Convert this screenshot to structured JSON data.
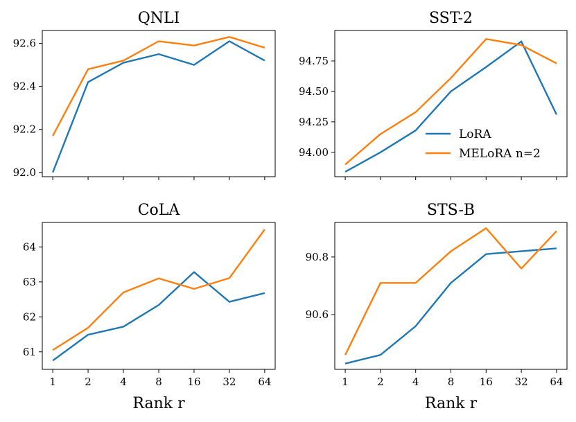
{
  "chart_data": [
    {
      "type": "line",
      "title": "QNLI",
      "categories": [
        "1",
        "2",
        "4",
        "8",
        "16",
        "32",
        "64"
      ],
      "xlabel": "",
      "ylim": [
        91.98,
        92.66
      ],
      "yticks": [
        "92.0",
        "92.2",
        "92.4",
        "92.6"
      ],
      "series": [
        {
          "name": "LoRA",
          "color": "#1f77b4",
          "values": [
            92.0,
            92.42,
            92.51,
            92.55,
            92.5,
            92.61,
            92.52
          ]
        },
        {
          "name": "MELoRA n=2",
          "color": "#ff7f0e",
          "values": [
            92.17,
            92.48,
            92.52,
            92.61,
            92.59,
            92.63,
            92.58
          ]
        }
      ],
      "legend": false
    },
    {
      "type": "line",
      "title": "SST-2",
      "categories": [
        "1",
        "2",
        "4",
        "8",
        "16",
        "32",
        "64"
      ],
      "xlabel": "",
      "ylim": [
        93.8,
        95.0
      ],
      "yticks": [
        "94.00",
        "94.25",
        "94.50",
        "94.75"
      ],
      "series": [
        {
          "name": "LoRA",
          "color": "#1f77b4",
          "values": [
            93.84,
            94.0,
            94.18,
            94.5,
            94.7,
            94.91,
            94.31
          ]
        },
        {
          "name": "MELoRA n=2",
          "color": "#ff7f0e",
          "values": [
            93.9,
            94.15,
            94.33,
            94.61,
            94.93,
            94.88,
            94.73
          ]
        }
      ],
      "legend": true,
      "legend_loc": "lower-right"
    },
    {
      "type": "line",
      "title": "CoLA",
      "categories": [
        "1",
        "2",
        "4",
        "8",
        "16",
        "32",
        "64"
      ],
      "xlabel": "Rank r",
      "ylim": [
        60.5,
        64.7
      ],
      "yticks": [
        "61",
        "62",
        "63",
        "64"
      ],
      "series": [
        {
          "name": "LoRA",
          "color": "#1f77b4",
          "values": [
            60.75,
            61.49,
            61.72,
            62.34,
            63.28,
            62.43,
            62.68
          ]
        },
        {
          "name": "MELoRA n=2",
          "color": "#ff7f0e",
          "values": [
            61.05,
            61.69,
            62.7,
            63.1,
            62.8,
            63.11,
            64.5
          ]
        }
      ],
      "legend": false
    },
    {
      "type": "line",
      "title": "STS-B",
      "categories": [
        "1",
        "2",
        "4",
        "8",
        "16",
        "32",
        "64"
      ],
      "xlabel": "Rank r",
      "ylim": [
        90.41,
        90.92
      ],
      "yticks": [
        "90.6",
        "90.8"
      ],
      "series": [
        {
          "name": "LoRA",
          "color": "#1f77b4",
          "values": [
            90.43,
            90.46,
            90.56,
            90.71,
            90.81,
            90.82,
            90.83
          ]
        },
        {
          "name": "MELoRA n=2",
          "color": "#ff7f0e",
          "values": [
            90.46,
            90.71,
            90.71,
            90.82,
            90.9,
            90.76,
            90.89
          ]
        }
      ],
      "legend": false
    }
  ]
}
